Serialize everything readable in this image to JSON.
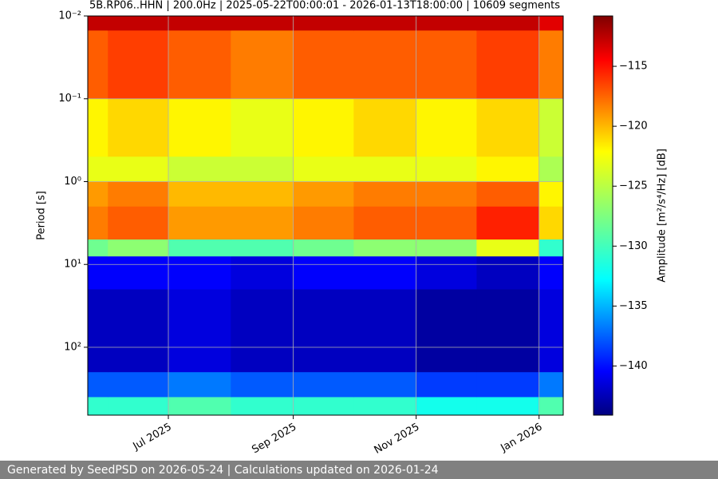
{
  "chart_data": {
    "type": "heatmap",
    "title": "5B.RP06..HHN | 200.0Hz | 2025-05-22T00:00:01 - 2026-01-13T18:00:00 | 10609 segments",
    "y_label": "Period [s]",
    "colorbar_label": "Amplitude [m²/s⁴/Hz] [dB]",
    "x": [
      "2025-05",
      "2025-06",
      "2025-07",
      "2025-08",
      "2025-09",
      "2025-10",
      "2025-11",
      "2025-12",
      "2026-01"
    ],
    "period_bins": [
      0.01,
      0.015,
      0.1,
      0.5,
      1,
      2,
      5,
      8,
      20,
      200,
      400,
      660
    ],
    "z": [
      [
        -113,
        -113,
        -113,
        -113,
        -113,
        -113,
        -113,
        -113,
        -114
      ],
      [
        -118,
        -117,
        -118,
        -119,
        -118,
        -118,
        -118,
        -117,
        -119
      ],
      [
        -123,
        -122,
        -123,
        -124,
        -123,
        -122,
        -123,
        -122,
        -125
      ],
      [
        -124,
        -124,
        -125,
        -125,
        -124,
        -124,
        -124,
        -123,
        -126
      ],
      [
        -120,
        -119,
        -121,
        -121,
        -120,
        -119,
        -119,
        -118,
        -123
      ],
      [
        -119,
        -118,
        -120,
        -120,
        -119,
        -118,
        -118,
        -116,
        -122
      ],
      [
        -128,
        -127,
        -129,
        -129,
        -128,
        -127,
        -127,
        -124,
        -130
      ],
      [
        -140,
        -140,
        -140,
        -141,
        -140,
        -140,
        -141,
        -142,
        -140
      ],
      [
        -142,
        -142,
        -141,
        -142,
        -142,
        -142,
        -143,
        -143,
        -141
      ],
      [
        -137,
        -137,
        -136,
        -137,
        -137,
        -137,
        -138,
        -138,
        -136
      ],
      [
        -130,
        -130,
        -129,
        -130,
        -130,
        -130,
        -131,
        -131,
        -129
      ]
    ],
    "xlim": [
      "2025-05-22",
      "2026-01-13"
    ],
    "xticks": [
      {
        "value": "2025-07-01",
        "label": "Jul 2025"
      },
      {
        "value": "2025-09-01",
        "label": "Sep 2025"
      },
      {
        "value": "2025-11-01",
        "label": "Nov 2025"
      },
      {
        "value": "2026-01-01",
        "label": "Jan 2026"
      }
    ],
    "ylim": [
      0.01,
      660
    ],
    "ylog": true,
    "yinverted": true,
    "yticks": [
      {
        "value": 0.01,
        "label": "10⁻²"
      },
      {
        "value": 0.1,
        "label": "10⁻¹"
      },
      {
        "value": 1,
        "label": "10⁰"
      },
      {
        "value": 10,
        "label": "10¹"
      },
      {
        "value": 100,
        "label": "10²"
      }
    ],
    "clim": [
      -144.1,
      -110.8
    ],
    "colormap": "jet",
    "cticks": [
      {
        "value": -115,
        "label": "−115"
      },
      {
        "value": -120,
        "label": "−120"
      },
      {
        "value": -125,
        "label": "−125"
      },
      {
        "value": -130,
        "label": "−130"
      },
      {
        "value": -135,
        "label": "−135"
      },
      {
        "value": -140,
        "label": "−140"
      }
    ],
    "grid": true
  },
  "footer": "Generated by SeedPSD on 2026-05-24 | Calculations updated on 2026-01-24"
}
